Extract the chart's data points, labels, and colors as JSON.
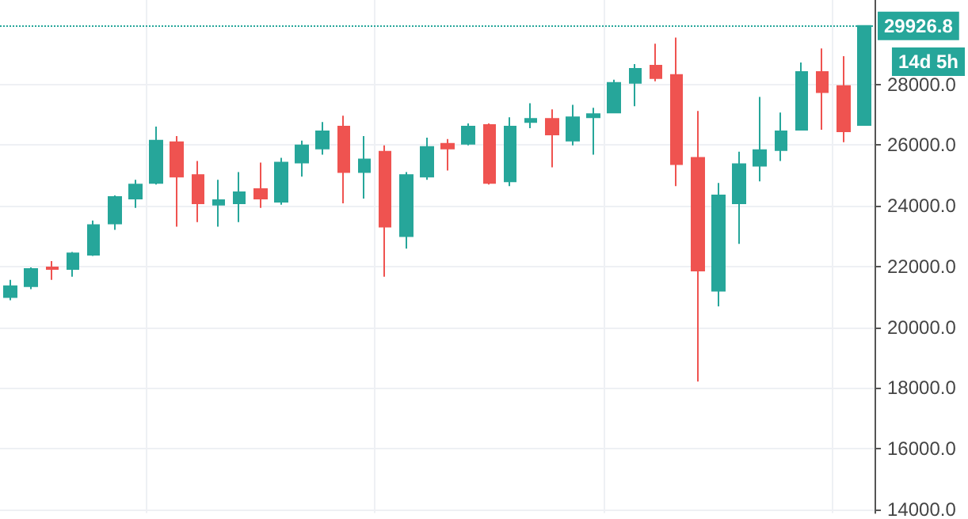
{
  "chart_data": {
    "type": "candlestick",
    "categories": [
      null,
      null,
      null,
      null,
      null,
      null,
      null,
      null,
      null,
      null,
      null,
      null,
      null,
      null,
      null,
      null,
      null,
      null,
      null,
      null,
      null,
      null,
      null,
      null,
      null,
      null,
      null,
      null,
      null,
      null,
      null,
      null,
      null,
      null,
      null,
      null,
      null,
      null,
      null,
      null,
      null,
      null
    ],
    "ohlc": [
      [
        20996,
        21562,
        20893,
        21356
      ],
      [
        21356,
        21975,
        21254,
        21923
      ],
      [
        21975,
        22180,
        21562,
        21923
      ],
      [
        21923,
        22480,
        21666,
        22438
      ],
      [
        22387,
        23520,
        22350,
        23365
      ],
      [
        23417,
        24344,
        23211,
        24292
      ],
      [
        24240,
        24859,
        23932,
        24704
      ],
      [
        24756,
        26610,
        24700,
        26146
      ],
      [
        26095,
        26300,
        23314,
        24962
      ],
      [
        25013,
        25477,
        23468,
        24086
      ],
      [
        24035,
        24859,
        23314,
        24189
      ],
      [
        24086,
        25116,
        23468,
        24447
      ],
      [
        24550,
        25425,
        23932,
        24240
      ],
      [
        24137,
        25580,
        24035,
        25425
      ],
      [
        25425,
        26146,
        24962,
        25992
      ],
      [
        25889,
        26764,
        25683,
        26455
      ],
      [
        26610,
        26970,
        24086,
        25116
      ],
      [
        25116,
        26300,
        24240,
        25528
      ],
      [
        25786,
        25992,
        21666,
        23314
      ],
      [
        23004,
        25116,
        22593,
        25013
      ],
      [
        24962,
        26249,
        24859,
        25940
      ],
      [
        26043,
        26198,
        25168,
        25889
      ],
      [
        26043,
        26713,
        25992,
        26610
      ],
      [
        26661,
        26713,
        24700,
        24756
      ],
      [
        24807,
        26919,
        24653,
        26610
      ],
      [
        26764,
        27382,
        26558,
        26867
      ],
      [
        26867,
        27176,
        25271,
        26352
      ],
      [
        26146,
        27330,
        25992,
        26919
      ],
      [
        26919,
        27227,
        25683,
        27022
      ],
      [
        27073,
        28155,
        27050,
        28051
      ],
      [
        28051,
        28670,
        27279,
        28515
      ],
      [
        28618,
        29339,
        28103,
        28206
      ],
      [
        28309,
        29545,
        24653,
        25374
      ],
      [
        25580,
        27125,
        18215,
        21872
      ],
      [
        21202,
        24756,
        20687,
        24344
      ],
      [
        24086,
        25786,
        22747,
        25374
      ],
      [
        25322,
        27588,
        24807,
        25837
      ],
      [
        25837,
        27073,
        25477,
        26455
      ],
      [
        26507,
        28721,
        26480,
        28412
      ],
      [
        28412,
        29185,
        26507,
        27743
      ],
      [
        27949,
        28927,
        26095,
        26455
      ],
      [
        26661,
        29926.8,
        26661,
        29926.8
      ]
    ],
    "colors": [
      "#26a69a",
      "#26a69a",
      "#ef5350",
      "#26a69a",
      "#26a69a",
      "#26a69a",
      "#26a69a",
      "#26a69a",
      "#ef5350",
      "#ef5350",
      "#26a69a",
      "#26a69a",
      "#ef5350",
      "#26a69a",
      "#26a69a",
      "#26a69a",
      "#ef5350",
      "#26a69a",
      "#ef5350",
      "#26a69a",
      "#26a69a",
      "#ef5350",
      "#26a69a",
      "#ef5350",
      "#26a69a",
      "#26a69a",
      "#ef5350",
      "#26a69a",
      "#26a69a",
      "#26a69a",
      "#26a69a",
      "#ef5350",
      "#ef5350",
      "#ef5350",
      "#26a69a",
      "#26a69a",
      "#26a69a",
      "#26a69a",
      "#26a69a",
      "#ef5350",
      "#ef5350",
      "#26a69a"
    ],
    "ylim": [
      13880,
      30780
    ],
    "yticks": [
      {
        "value": 14000,
        "label": "14000.0"
      },
      {
        "value": 16000,
        "label": "16000.0"
      },
      {
        "value": 18000,
        "label": "18000.0"
      },
      {
        "value": 20000,
        "label": "20000.0"
      },
      {
        "value": 22000,
        "label": "22000.0"
      },
      {
        "value": 24000,
        "label": "24000.0"
      },
      {
        "value": 26000,
        "label": "26000.0"
      },
      {
        "value": 28000,
        "label": "28000.0"
      }
    ],
    "ref_lines": [
      {
        "axis": "y",
        "value": 29926.8,
        "label": "29926.8",
        "color": "#26a69a",
        "line_style": "dotted"
      }
    ],
    "annotations": [
      "14d 5h"
    ],
    "grid": true,
    "tick_labels": "y"
  }
}
